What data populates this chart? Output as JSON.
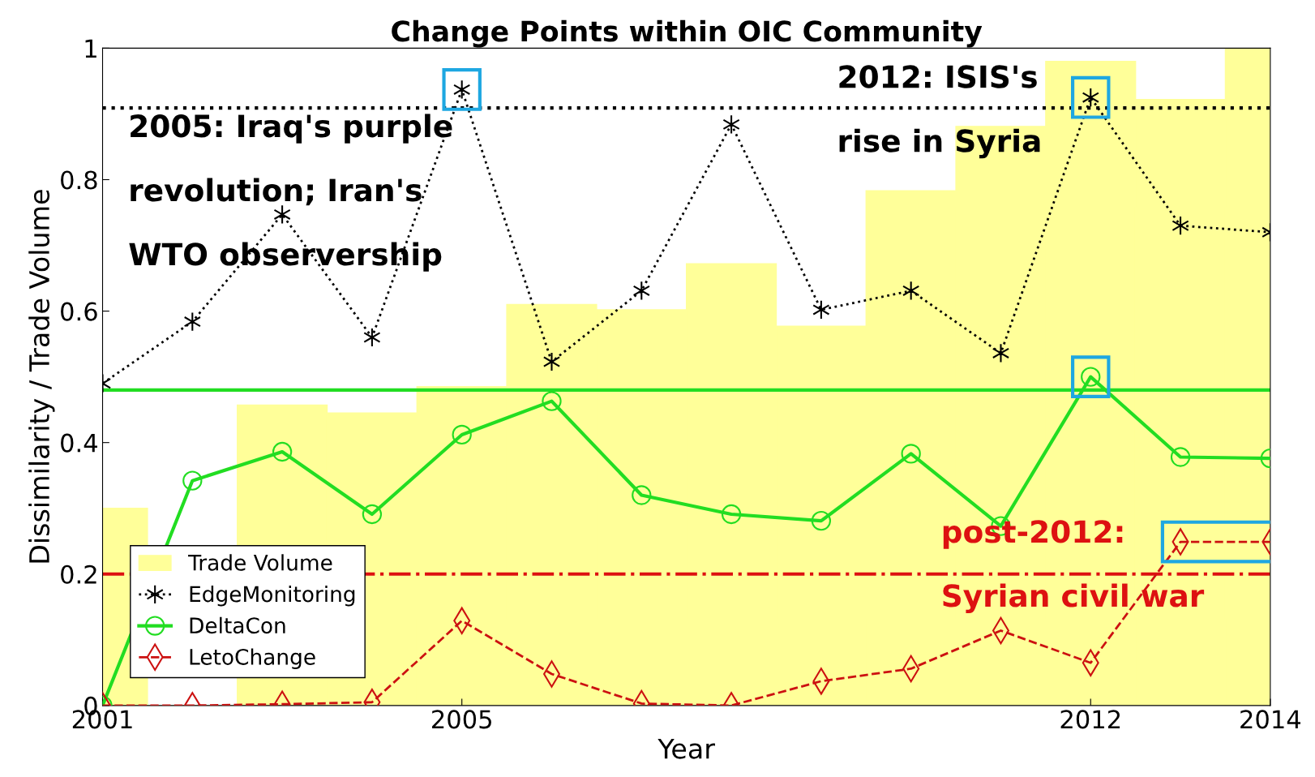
{
  "chart_data": {
    "type": "line",
    "title": "Change Points within OIC Community",
    "xlabel": "Year",
    "ylabel": "Dissimilarity / Trade Volume",
    "x": [
      2001,
      2002,
      2003,
      2004,
      2005,
      2006,
      2007,
      2008,
      2009,
      2010,
      2011,
      2012,
      2013,
      2014
    ],
    "series": [
      {
        "name": "Trade Volume",
        "type": "bar",
        "color": "#ffff99",
        "values": [
          0.3,
          0,
          0.457,
          0.445,
          0.485,
          0.61,
          0.602,
          0.672,
          0.577,
          0.783,
          0.881,
          0.98,
          0.922,
          1.0
        ]
      },
      {
        "name": "EdgeMonitoring",
        "color": "#000000",
        "marker": "cross",
        "line_style": "dotted",
        "values": [
          0.49,
          0.584,
          0.747,
          0.56,
          0.937,
          0.523,
          0.631,
          0.884,
          0.602,
          0.631,
          0.536,
          0.925,
          0.73,
          0.72
        ]
      },
      {
        "name": "DeltaCon",
        "color": "#22dd22",
        "marker": "circle",
        "line_style": "solid",
        "values": [
          0,
          0.342,
          0.386,
          0.291,
          0.412,
          0.463,
          0.32,
          0.291,
          0.281,
          0.383,
          0.273,
          0.5,
          0.378,
          0.376
        ]
      },
      {
        "name": "LetoChange",
        "color": "#cc1111",
        "marker": "diamond",
        "line_style": "dashed",
        "values": [
          0,
          0,
          0.002,
          0.005,
          0.129,
          0.048,
          0.003,
          0,
          0.037,
          0.056,
          0.114,
          0.065,
          0.249,
          0.249
        ]
      }
    ],
    "ref_lines": [
      {
        "axis": "y",
        "value": 0.909,
        "color": "#000000",
        "line_style": "dotted"
      },
      {
        "axis": "y",
        "value": 0.48,
        "color": "#22dd22",
        "line_style": "solid"
      },
      {
        "axis": "y",
        "value": 0.2,
        "color": "#dd1111",
        "line_style": "dashdot"
      }
    ],
    "annotations": [
      "2005: Iraq's purple\nrevolution; Iran's\nWTO observership",
      "2012: ISIS's\nrise in Syria",
      "post-2012:\nSyrian civil war"
    ],
    "xlim": [
      2001,
      2014
    ],
    "xticks": [
      2001,
      2005,
      2012,
      2014
    ],
    "ylim": [
      0,
      1
    ],
    "yticks": [
      0,
      0.2,
      0.4,
      0.6,
      0.8,
      1
    ],
    "grid": false,
    "legend": "bottom left"
  }
}
